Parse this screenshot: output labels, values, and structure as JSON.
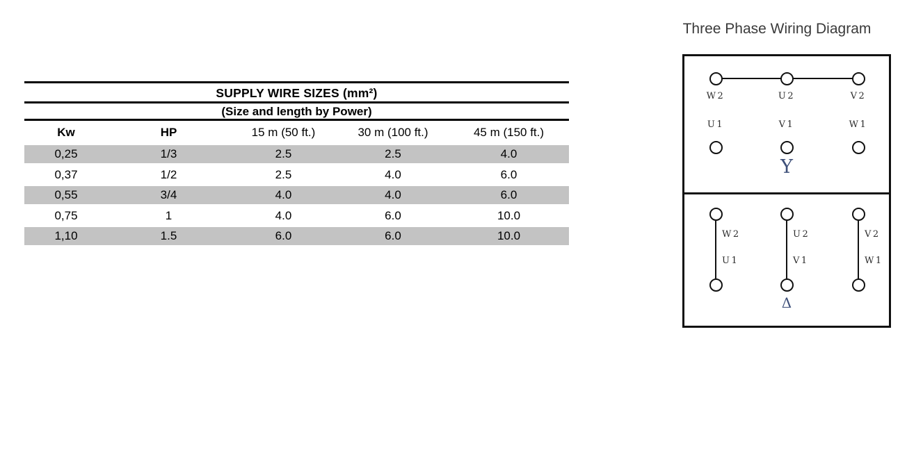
{
  "table": {
    "title": "SUPPLY WIRE SIZES (mm²)",
    "subtitle": "(Size and length by Power)",
    "columns": [
      "Kw",
      "HP",
      "15 m (50 ft.)",
      "30 m (100 ft.)",
      "45 m (150 ft.)"
    ],
    "rows": [
      [
        "0,25",
        "1/3",
        "2.5",
        "2.5",
        "4.0"
      ],
      [
        "0,37",
        "1/2",
        "2.5",
        "4.0",
        "6.0"
      ],
      [
        "0,55",
        "3/4",
        "4.0",
        "4.0",
        "6.0"
      ],
      [
        "0,75",
        "1",
        "4.0",
        "6.0",
        "10.0"
      ],
      [
        "1,10",
        "1.5",
        "6.0",
        "6.0",
        "10.0"
      ]
    ],
    "row_shade_color": "#c3c3c3"
  },
  "diagram": {
    "title": "Three Phase Wiring Diagram",
    "star": {
      "symbol": "Y",
      "top_terminals": [
        "W2",
        "U2",
        "V2"
      ],
      "bottom_terminals": [
        "U1",
        "V1",
        "W1"
      ]
    },
    "delta": {
      "symbol": "Δ",
      "pairs": [
        {
          "top": "W2",
          "bottom": "U1"
        },
        {
          "top": "U2",
          "bottom": "V1"
        },
        {
          "top": "V2",
          "bottom": "W1"
        }
      ]
    }
  }
}
